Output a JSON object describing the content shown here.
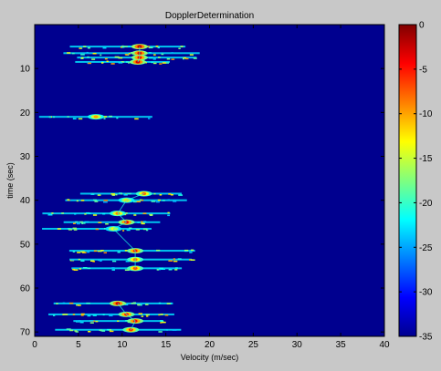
{
  "chart_data": {
    "type": "heatmap",
    "title": "DopplerDetermination",
    "xlabel": "Velocity (m/sec)",
    "ylabel": "time (sec)",
    "xlim": [
      0,
      40
    ],
    "ylim": [
      0,
      71
    ],
    "y_direction": "reversed",
    "x_ticks": [
      "0",
      "5",
      "10",
      "15",
      "20",
      "25",
      "30",
      "35",
      "40"
    ],
    "y_ticks": [
      "10",
      "20",
      "30",
      "40",
      "50",
      "60",
      "70"
    ],
    "x_tick_values": [
      0,
      5,
      10,
      15,
      20,
      25,
      30,
      35,
      40
    ],
    "y_tick_values": [
      10,
      20,
      30,
      40,
      50,
      60,
      70
    ],
    "colorbar": {
      "range": [
        -35,
        0
      ],
      "ticks": [
        "0",
        "-5",
        "-10",
        "-15",
        "-20",
        "-25",
        "-30",
        "-35"
      ],
      "tick_values": [
        0,
        -5,
        -10,
        -15,
        -20,
        -25,
        -30,
        -35
      ],
      "colormap": "jet"
    },
    "background_value": -35,
    "peak_returns": [
      {
        "time": 5,
        "velocity": 12.0,
        "level": -2
      },
      {
        "time": 6.5,
        "velocity": 12.0,
        "level": -3
      },
      {
        "time": 7.5,
        "velocity": 12.0,
        "level": -4
      },
      {
        "time": 8.5,
        "velocity": 11.8,
        "level": -3
      },
      {
        "time": 21,
        "velocity": 7.0,
        "level": -10
      },
      {
        "time": 38.5,
        "velocity": 12.5,
        "level": -8
      },
      {
        "time": 40,
        "velocity": 10.5,
        "level": -12
      },
      {
        "time": 43,
        "velocity": 9.5,
        "level": -9
      },
      {
        "time": 45,
        "velocity": 10.5,
        "level": -4
      },
      {
        "time": 46.5,
        "velocity": 9.0,
        "level": -13
      },
      {
        "time": 51.5,
        "velocity": 11.5,
        "level": -5
      },
      {
        "time": 53.5,
        "velocity": 11.5,
        "level": -8
      },
      {
        "time": 55.5,
        "velocity": 11.5,
        "level": -7
      },
      {
        "time": 63.5,
        "velocity": 9.5,
        "level": -3
      },
      {
        "time": 66,
        "velocity": 10.5,
        "level": -5
      },
      {
        "time": 67.5,
        "velocity": 11.5,
        "level": -4
      },
      {
        "time": 69.5,
        "velocity": 11.0,
        "level": -6
      }
    ]
  }
}
